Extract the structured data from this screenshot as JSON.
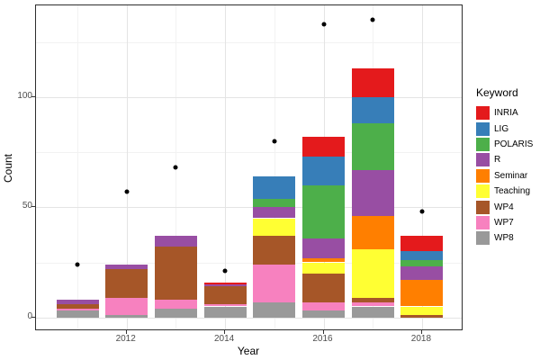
{
  "chart_data": {
    "type": "bar",
    "variant": "stacked-bars-with-points",
    "title": "",
    "xlabel": "Year",
    "ylabel": "Count",
    "legend_title": "Keyword",
    "legend_position": "right",
    "years": [
      2011,
      2012,
      2013,
      2014,
      2015,
      2016,
      2017,
      2018
    ],
    "x_tick_labels": [
      "2012",
      "2014",
      "2016",
      "2018"
    ],
    "y_tick_labels": [
      "0",
      "50",
      "100"
    ],
    "ylim": [
      -7,
      144
    ],
    "grid": {
      "y_major": [
        0,
        50,
        100
      ],
      "y_minor": [
        25,
        75,
        125
      ],
      "x_major": [
        2012,
        2014,
        2016,
        2018
      ],
      "x_minor": [
        2011,
        2013,
        2015,
        2017
      ]
    },
    "series": [
      {
        "name": "INRIA",
        "color": "#E41A1C",
        "values": [
          0,
          0,
          0,
          1,
          0,
          9,
          13,
          7
        ]
      },
      {
        "name": "LIG",
        "color": "#377EB8",
        "values": [
          0,
          0,
          0,
          0,
          10,
          13,
          12,
          4
        ]
      },
      {
        "name": "POLARIS",
        "color": "#4DAF4A",
        "values": [
          0,
          0,
          0,
          0,
          4,
          24,
          21,
          3
        ]
      },
      {
        "name": "R",
        "color": "#984EA3",
        "values": [
          2,
          2,
          5,
          1,
          5,
          9,
          21,
          6
        ]
      },
      {
        "name": "Seminar",
        "color": "#FF7F00",
        "values": [
          0,
          0,
          0,
          0,
          0,
          2,
          15,
          12
        ]
      },
      {
        "name": "Teaching",
        "color": "#FFFF33",
        "values": [
          0,
          0,
          0,
          0,
          8,
          5,
          22,
          4
        ]
      },
      {
        "name": "WP4",
        "color": "#A65628",
        "values": [
          2,
          13,
          24,
          8,
          13,
          13,
          2,
          1
        ]
      },
      {
        "name": "WP7",
        "color": "#F781BF",
        "values": [
          1,
          8,
          4,
          1,
          17,
          4,
          2,
          0
        ]
      },
      {
        "name": "WP8",
        "color": "#999999",
        "values": [
          3,
          1,
          4,
          5,
          7,
          3,
          5,
          0
        ]
      }
    ],
    "stack_order": "first-series-on-top",
    "bar_totals": [
      8,
      24,
      37,
      16,
      64,
      82,
      113,
      37
    ],
    "points": {
      "name": "yearly-total-dots",
      "color": "#000000",
      "values": [
        24,
        57,
        68,
        21,
        80,
        133,
        135,
        48
      ]
    },
    "theme": {
      "panel_background": "#FFFFFF",
      "panel_border": "#2E2E2E",
      "grid_major": "#E4E4E4",
      "grid_minor": "#F2F2F2",
      "tick_color": "#333333",
      "tick_label_color": "#4D4D4D"
    }
  }
}
